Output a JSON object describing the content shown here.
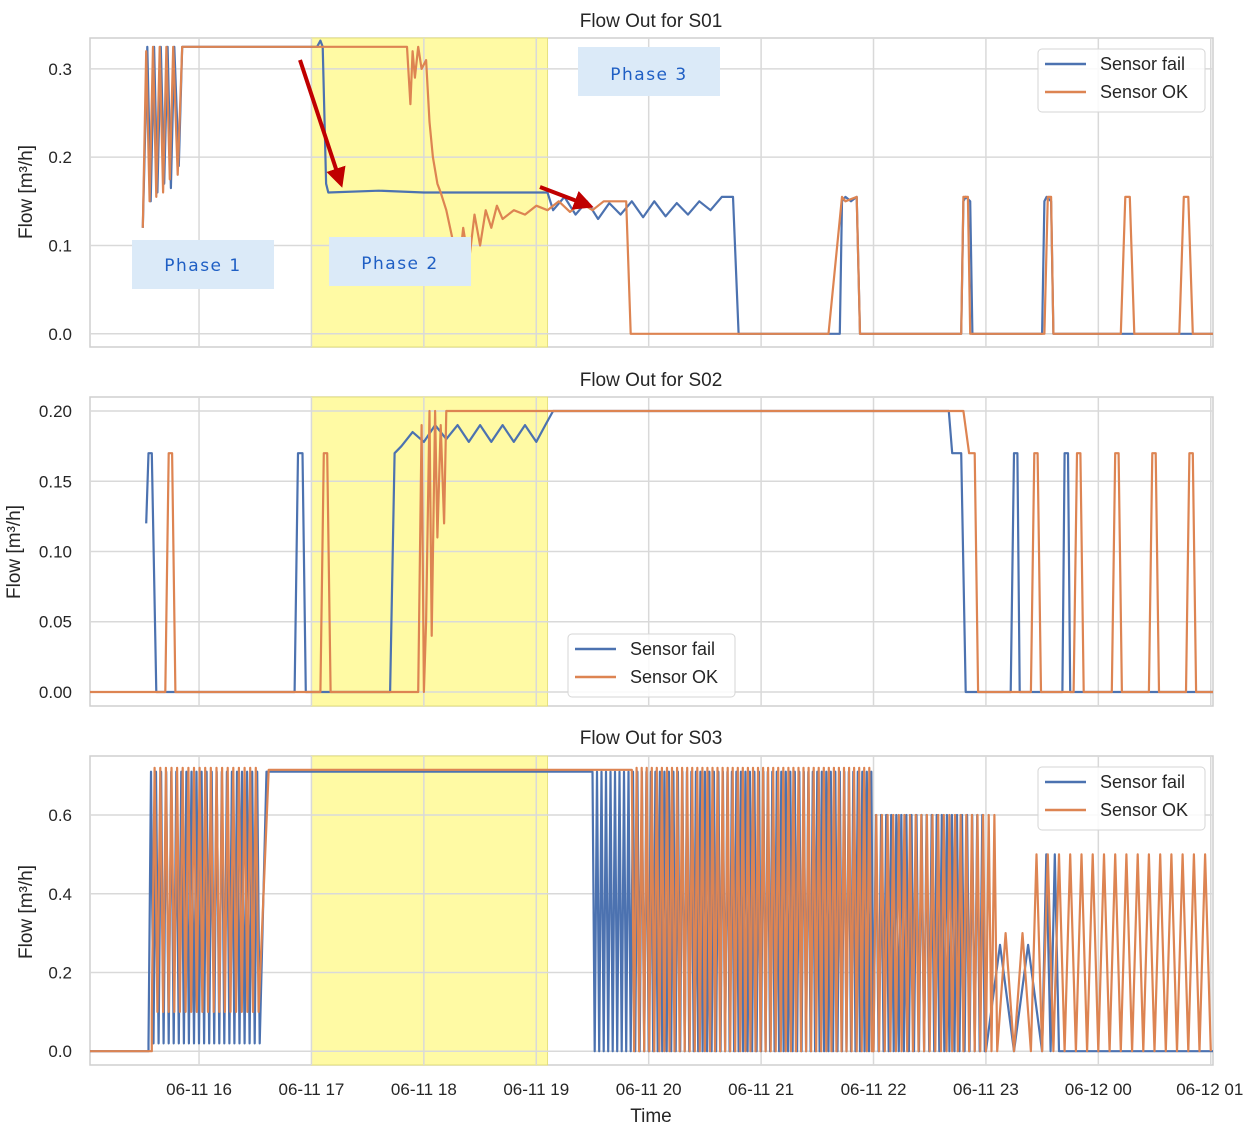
{
  "colors": {
    "sensor_fail": "#4c72b0",
    "sensor_ok": "#dd8452",
    "highlight": "#fffaa0",
    "grid": "#d9d9d9",
    "frame": "#cfcfcf",
    "arrow": "#c00000",
    "phase_box": "#dbeaf8",
    "phase_text": "#1f5fc4"
  },
  "x_axis": {
    "label": "Time",
    "range_hours": [
      15.03,
      25.02
    ],
    "ticks": [
      {
        "value": 16,
        "label": "06-11 16"
      },
      {
        "value": 17,
        "label": "06-11 17"
      },
      {
        "value": 18,
        "label": "06-11 18"
      },
      {
        "value": 19,
        "label": "06-11 19"
      },
      {
        "value": 20,
        "label": "06-11 20"
      },
      {
        "value": 21,
        "label": "06-11 21"
      },
      {
        "value": 22,
        "label": "06-11 22"
      },
      {
        "value": 23,
        "label": "06-11 23"
      },
      {
        "value": 24,
        "label": "06-12 00"
      },
      {
        "value": 25,
        "label": "06-12 01"
      }
    ]
  },
  "highlight_interval_hours": [
    17.0,
    19.1
  ],
  "annotations": {
    "phases": [
      {
        "label": "Phase 1",
        "panel": 0
      },
      {
        "label": "Phase 2",
        "panel": 0
      },
      {
        "label": "Phase 3",
        "panel": 0
      }
    ],
    "arrows": 2
  },
  "chart_data": [
    {
      "type": "line",
      "title": "Flow Out for S01",
      "xlabel": "",
      "ylabel": "Flow [m³/h]",
      "ylim": [
        -0.015,
        0.335
      ],
      "yticks": [
        {
          "value": 0.0,
          "label": "0.0"
        },
        {
          "value": 0.1,
          "label": "0.1"
        },
        {
          "value": 0.2,
          "label": "0.2"
        },
        {
          "value": 0.3,
          "label": "0.3"
        }
      ],
      "legend": {
        "position": "top-right",
        "entries": [
          "Sensor fail",
          "Sensor OK"
        ]
      },
      "grid": true,
      "series": [
        {
          "name": "Sensor fail",
          "color_key": "sensor_fail",
          "x": [
            15.5,
            15.54,
            15.57,
            15.6,
            15.63,
            15.66,
            15.69,
            15.72,
            15.75,
            15.78,
            15.82,
            15.85,
            15.88,
            15.92,
            15.96,
            16.0,
            16.5,
            16.9,
            17.0,
            17.05,
            17.08,
            17.1,
            17.13,
            17.15,
            17.6,
            18.0,
            18.5,
            19.0,
            19.1,
            19.15,
            19.25,
            19.35,
            19.45,
            19.55,
            19.65,
            19.75,
            19.85,
            19.95,
            20.05,
            20.15,
            20.25,
            20.35,
            20.45,
            20.55,
            20.65,
            20.75,
            20.8,
            21.7,
            21.72,
            21.75,
            21.8,
            21.85,
            21.88,
            21.9,
            22.0,
            22.5,
            22.78,
            22.8,
            22.82,
            22.86,
            22.88,
            23.5,
            23.52,
            23.54,
            23.58,
            23.6,
            25.02
          ],
          "y": [
            0.12,
            0.325,
            0.15,
            0.325,
            0.16,
            0.325,
            0.17,
            0.325,
            0.165,
            0.325,
            0.19,
            0.325,
            0.325,
            0.325,
            0.325,
            0.325,
            0.325,
            0.325,
            0.325,
            0.325,
            0.332,
            0.325,
            0.17,
            0.16,
            0.162,
            0.16,
            0.16,
            0.16,
            0.16,
            0.14,
            0.155,
            0.135,
            0.15,
            0.13,
            0.148,
            0.135,
            0.15,
            0.132,
            0.15,
            0.133,
            0.148,
            0.135,
            0.15,
            0.14,
            0.155,
            0.155,
            0.0,
            0.0,
            0.15,
            0.155,
            0.15,
            0.155,
            0.0,
            0.0,
            0.0,
            0.0,
            0.0,
            0.15,
            0.155,
            0.15,
            0.0,
            0.0,
            0.15,
            0.155,
            0.15,
            0.0,
            0.0
          ]
        },
        {
          "name": "Sensor OK",
          "color_key": "sensor_ok",
          "x": [
            15.5,
            15.53,
            15.56,
            15.59,
            15.62,
            15.65,
            15.68,
            15.71,
            15.74,
            15.77,
            15.81,
            15.85,
            15.9,
            15.95,
            16.0,
            16.5,
            17.0,
            17.5,
            17.85,
            17.88,
            17.9,
            17.92,
            17.95,
            17.98,
            18.02,
            18.05,
            18.08,
            18.12,
            18.15,
            18.2,
            18.25,
            18.3,
            18.35,
            18.4,
            18.45,
            18.5,
            18.55,
            18.6,
            18.65,
            18.7,
            18.8,
            18.9,
            19.0,
            19.1,
            19.2,
            19.3,
            19.4,
            19.5,
            19.6,
            19.7,
            19.8,
            19.84,
            20.0,
            21.6,
            21.72,
            21.75,
            21.85,
            21.88,
            21.9,
            22.0,
            22.78,
            22.8,
            22.84,
            22.86,
            22.88,
            23.52,
            23.55,
            23.58,
            23.6,
            23.62,
            24.2,
            24.24,
            24.28,
            24.32,
            24.72,
            24.76,
            24.8,
            24.84,
            25.02
          ],
          "y": [
            0.12,
            0.32,
            0.15,
            0.325,
            0.155,
            0.325,
            0.16,
            0.325,
            0.175,
            0.325,
            0.18,
            0.325,
            0.325,
            0.325,
            0.325,
            0.325,
            0.325,
            0.325,
            0.325,
            0.26,
            0.32,
            0.29,
            0.325,
            0.3,
            0.31,
            0.24,
            0.2,
            0.17,
            0.16,
            0.14,
            0.11,
            0.06,
            0.12,
            0.08,
            0.135,
            0.1,
            0.14,
            0.12,
            0.145,
            0.13,
            0.14,
            0.135,
            0.145,
            0.14,
            0.15,
            0.138,
            0.148,
            0.14,
            0.15,
            0.15,
            0.15,
            0.0,
            0.0,
            0.0,
            0.155,
            0.15,
            0.155,
            0.0,
            0.0,
            0.0,
            0.0,
            0.155,
            0.155,
            0.0,
            0.0,
            0.0,
            0.155,
            0.155,
            0.0,
            0.0,
            0.0,
            0.155,
            0.155,
            0.0,
            0.0,
            0.155,
            0.155,
            0.0,
            0.0
          ]
        }
      ]
    },
    {
      "type": "line",
      "title": "Flow Out for S02",
      "xlabel": "",
      "ylabel": "Flow [m³/h]",
      "ylim": [
        -0.01,
        0.21
      ],
      "yticks": [
        {
          "value": 0.0,
          "label": "0.00"
        },
        {
          "value": 0.05,
          "label": "0.05"
        },
        {
          "value": 0.1,
          "label": "0.10"
        },
        {
          "value": 0.15,
          "label": "0.15"
        },
        {
          "value": 0.2,
          "label": "0.20"
        }
      ],
      "legend": {
        "position": "bottom-center",
        "entries": [
          "Sensor fail",
          "Sensor OK"
        ]
      },
      "grid": true,
      "series": [
        {
          "name": "Sensor fail",
          "color_key": "sensor_fail",
          "x": [
            15.53,
            15.55,
            15.58,
            15.62,
            15.64,
            16.85,
            16.88,
            16.92,
            16.95,
            17.7,
            17.74,
            17.8,
            17.9,
            18.0,
            18.1,
            18.2,
            18.3,
            18.4,
            18.5,
            18.6,
            18.7,
            18.8,
            18.9,
            19.0,
            19.08,
            19.15,
            20.0,
            21.0,
            22.0,
            22.67,
            22.7,
            22.78,
            22.82,
            23.22,
            23.25,
            23.28,
            23.3,
            23.68,
            23.7,
            23.73,
            23.75,
            25.02
          ],
          "y": [
            0.12,
            0.17,
            0.17,
            0.0,
            0.0,
            0.0,
            0.17,
            0.17,
            0.0,
            0.0,
            0.17,
            0.175,
            0.185,
            0.178,
            0.19,
            0.18,
            0.19,
            0.178,
            0.19,
            0.178,
            0.19,
            0.178,
            0.19,
            0.178,
            0.19,
            0.2,
            0.2,
            0.2,
            0.2,
            0.2,
            0.17,
            0.17,
            0.0,
            0.0,
            0.17,
            0.17,
            0.0,
            0.0,
            0.17,
            0.17,
            0.0,
            0.0
          ]
        },
        {
          "name": "Sensor OK",
          "color_key": "sensor_ok",
          "x": [
            15.03,
            15.7,
            15.73,
            15.76,
            15.79,
            17.08,
            17.11,
            17.14,
            17.17,
            17.95,
            17.98,
            18.0,
            18.02,
            18.05,
            18.07,
            18.1,
            18.12,
            18.15,
            18.18,
            18.2,
            18.25,
            18.3,
            19.0,
            19.5,
            20.0,
            21.0,
            22.0,
            22.72,
            22.75,
            22.8,
            22.85,
            22.9,
            22.93,
            22.96,
            23.4,
            23.43,
            23.46,
            23.49,
            23.78,
            23.81,
            23.84,
            23.87,
            24.12,
            24.15,
            24.18,
            24.21,
            24.45,
            24.48,
            24.51,
            24.54,
            24.78,
            24.81,
            24.84,
            24.87,
            25.02
          ],
          "y": [
            0.0,
            0.0,
            0.17,
            0.17,
            0.0,
            0.0,
            0.17,
            0.17,
            0.0,
            0.0,
            0.19,
            0.0,
            0.05,
            0.2,
            0.04,
            0.2,
            0.11,
            0.19,
            0.12,
            0.2,
            0.2,
            0.2,
            0.2,
            0.2,
            0.2,
            0.2,
            0.2,
            0.2,
            0.2,
            0.2,
            0.17,
            0.17,
            0.0,
            0.0,
            0.0,
            0.17,
            0.17,
            0.0,
            0.0,
            0.17,
            0.17,
            0.0,
            0.0,
            0.17,
            0.17,
            0.0,
            0.0,
            0.17,
            0.17,
            0.0,
            0.0,
            0.17,
            0.17,
            0.0,
            0.0
          ]
        }
      ]
    },
    {
      "type": "line",
      "title": "Flow Out for S03",
      "xlabel": "Time",
      "ylabel": "Flow [m³/h]",
      "ylim": [
        -0.035,
        0.75
      ],
      "yticks": [
        {
          "value": 0.0,
          "label": "0.0"
        },
        {
          "value": 0.2,
          "label": "0.2"
        },
        {
          "value": 0.4,
          "label": "0.4"
        },
        {
          "value": 0.6,
          "label": "0.6"
        }
      ],
      "legend": {
        "position": "top-right",
        "entries": [
          "Sensor fail",
          "Sensor OK"
        ]
      },
      "grid": true,
      "series": [
        {
          "name": "Sensor fail",
          "color_key": "sensor_fail",
          "osc": [
            {
              "start": 15.03,
              "end": 15.55,
              "step": 0.52,
              "lo": 0.0,
              "hi": 0.0
            },
            {
              "start": 15.55,
              "end": 16.55,
              "step": 0.045,
              "lo": 0.02,
              "hi": 0.71
            },
            {
              "start": 16.6,
              "end": 19.5,
              "step": 2.9,
              "lo": 0.71,
              "hi": 0.71
            },
            {
              "start": 19.52,
              "end": 22.0,
              "step": 0.04,
              "lo": 0.0,
              "hi": 0.71
            },
            {
              "start": 22.0,
              "end": 23.0,
              "step": 0.045,
              "lo": 0.0,
              "hi": 0.6
            },
            {
              "start": 23.0,
              "end": 23.5,
              "step": 0.25,
              "lo": 0.0,
              "hi": 0.27
            },
            {
              "start": 23.5,
              "end": 23.65,
              "step": 0.075,
              "lo": 0.0,
              "hi": 0.5
            },
            {
              "start": 23.65,
              "end": 25.02,
              "step": 1.37,
              "lo": 0.0,
              "hi": 0.0
            }
          ]
        },
        {
          "name": "Sensor OK",
          "color_key": "sensor_ok",
          "osc": [
            {
              "start": 15.03,
              "end": 15.58,
              "step": 0.55,
              "lo": 0.0,
              "hi": 0.0
            },
            {
              "start": 15.58,
              "end": 16.55,
              "step": 0.05,
              "lo": 0.1,
              "hi": 0.72
            },
            {
              "start": 16.62,
              "end": 19.85,
              "step": 3.23,
              "lo": 0.715,
              "hi": 0.715
            },
            {
              "start": 19.87,
              "end": 22.0,
              "step": 0.045,
              "lo": 0.0,
              "hi": 0.72
            },
            {
              "start": 22.0,
              "end": 23.1,
              "step": 0.05,
              "lo": 0.0,
              "hi": 0.6
            },
            {
              "start": 23.1,
              "end": 23.4,
              "step": 0.15,
              "lo": 0.0,
              "hi": 0.3
            },
            {
              "start": 23.4,
              "end": 25.02,
              "step": 0.1,
              "lo": 0.0,
              "hi": 0.5
            }
          ]
        }
      ]
    }
  ]
}
